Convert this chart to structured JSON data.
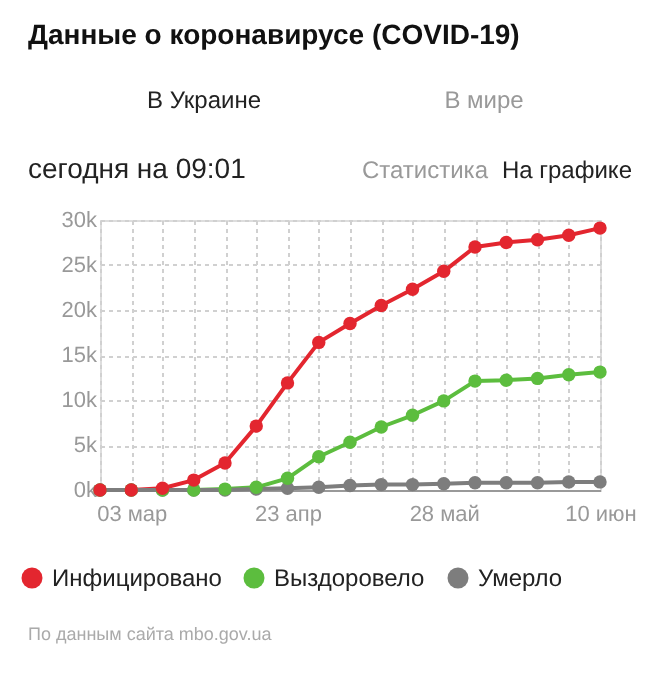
{
  "chart_data": {
    "type": "line",
    "title": "Данные о коронавирусе (COVID-19)",
    "annotations": [
      "В Украине",
      "В мире",
      "сегодня на 09:01",
      "Статистика",
      "На графике",
      "По данным сайта mbo.gov.ua"
    ],
    "categories": [
      null,
      "03 мар",
      null,
      null,
      null,
      null,
      "23 апр",
      null,
      null,
      null,
      null,
      "28 май",
      null,
      null,
      null,
      null,
      "10 июн"
    ],
    "series": [
      {
        "name": "Инфицировано",
        "color": "#e3262f",
        "values": [
          0,
          0,
          0.2,
          1.1,
          3,
          7.1,
          11.9,
          16.4,
          18.5,
          20.5,
          22.3,
          24.3,
          27,
          27.5,
          27.8,
          28.3,
          29.1
        ]
      },
      {
        "name": "Выздоровело",
        "color": "#5cbd3e",
        "values": [
          0,
          0,
          0,
          0,
          0.1,
          0.3,
          1.3,
          3.7,
          5.3,
          7,
          8.3,
          9.9,
          12.1,
          12.2,
          12.4,
          12.8,
          13.1
        ]
      },
      {
        "name": "Умерло",
        "color": "#7d7d7d",
        "values": [
          0,
          0,
          0,
          0,
          0,
          0.1,
          0.2,
          0.3,
          0.5,
          0.6,
          0.6,
          0.7,
          0.8,
          0.8,
          0.8,
          0.9,
          0.9
        ]
      }
    ],
    "ylim": [
      0,
      30
    ],
    "yticks": [
      {
        "value": 0,
        "label": "0k"
      },
      {
        "value": 5,
        "label": "5k"
      },
      {
        "value": 10,
        "label": "10k"
      },
      {
        "value": 15,
        "label": "15k"
      },
      {
        "value": 20,
        "label": "20k"
      },
      {
        "value": 25,
        "label": "25k"
      },
      {
        "value": 30,
        "label": "30k"
      }
    ],
    "grid": true,
    "legend": "bottom",
    "marker": "circle",
    "line_style": "solid"
  }
}
